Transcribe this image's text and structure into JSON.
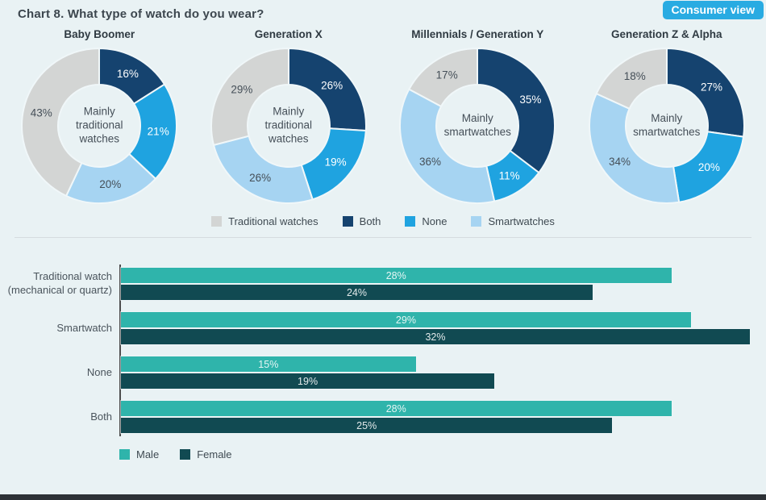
{
  "page": {
    "title": "Chart 8. What type of watch do you wear?",
    "badge": "Consumer view"
  },
  "colors": {
    "background": "#e9f2f4",
    "badge_bg": "#29abe2",
    "traditional": "#d3d5d4",
    "both": "#15436f",
    "none": "#1fa3e0",
    "smartwatches": "#a6d4f2",
    "male": "#2fb4ab",
    "female": "#114a52",
    "donut_gap": "#f0f7f9"
  },
  "chart_data": [
    {
      "type": "pie",
      "subtype": "donut-small-multiples",
      "title": "What type of watch do you wear? — by generation",
      "legend": [
        {
          "label": "Traditional watches",
          "color_key": "traditional",
          "label_text_color": "#454f58"
        },
        {
          "label": "Both",
          "color_key": "both",
          "label_text_color": "#ffffff"
        },
        {
          "label": "None",
          "color_key": "none",
          "label_text_color": "#ffffff"
        },
        {
          "label": "Smartwatches",
          "color_key": "smartwatches",
          "label_text_color": "#454f58"
        }
      ],
      "donuts": [
        {
          "title": "Baby Boomer",
          "center_label": "Mainly traditional watches",
          "slices": [
            {
              "label": "Both",
              "value": 16
            },
            {
              "label": "None",
              "value": 21
            },
            {
              "label": "Smartwatches",
              "value": 20
            },
            {
              "label": "Traditional watches",
              "value": 43
            }
          ]
        },
        {
          "title": "Generation X",
          "center_label": "Mainly traditional watches",
          "slices": [
            {
              "label": "Both",
              "value": 26
            },
            {
              "label": "None",
              "value": 19
            },
            {
              "label": "Smartwatches",
              "value": 26
            },
            {
              "label": "Traditional watches",
              "value": 29
            }
          ]
        },
        {
          "title": "Millennials / Generation Y",
          "center_label": "Mainly smartwatches",
          "slices": [
            {
              "label": "Both",
              "value": 35
            },
            {
              "label": "None",
              "value": 11
            },
            {
              "label": "Smartwatches",
              "value": 36
            },
            {
              "label": "Traditional watches",
              "value": 17
            }
          ]
        },
        {
          "title": "Generation Z & Alpha",
          "center_label": "Mainly smartwatches",
          "slices": [
            {
              "label": "Both",
              "value": 27
            },
            {
              "label": "None",
              "value": 20
            },
            {
              "label": "Smartwatches",
              "value": 34
            },
            {
              "label": "Traditional watches",
              "value": 18
            }
          ]
        }
      ]
    },
    {
      "type": "bar",
      "orientation": "horizontal",
      "categories": [
        "Traditional watch (mechanical or quartz)",
        "Smartwatch",
        "None",
        "Both"
      ],
      "series": [
        {
          "name": "Male",
          "color_key": "male",
          "values": [
            28,
            29,
            15,
            28
          ]
        },
        {
          "name": "Female",
          "color_key": "female",
          "values": [
            24,
            32,
            19,
            25
          ]
        }
      ],
      "xmax": 32,
      "value_suffix": "%",
      "legend_position": "bottom-left",
      "grid": false
    }
  ]
}
